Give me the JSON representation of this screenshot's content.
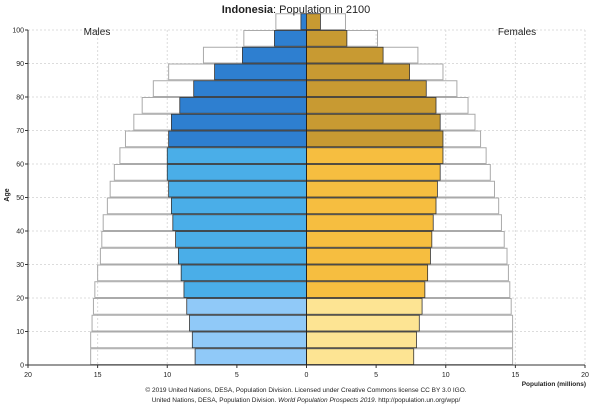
{
  "chart_data": {
    "type": "bar",
    "title_bold": "Indonesia",
    "title_rest": ": Population in 2100",
    "left_label": "Males",
    "right_label": "Females",
    "ylabel": "Age",
    "xlabel": "Population (millions)",
    "xlim": [
      -20,
      20
    ],
    "ylim": [
      0,
      100
    ],
    "x_ticks": [
      -20,
      -15,
      -10,
      -5,
      0,
      5,
      10,
      15,
      20
    ],
    "x_tick_labels": [
      "20",
      "15",
      "10",
      "5",
      "0",
      "5",
      "10",
      "15",
      "20"
    ],
    "y_ticks": [
      0,
      10,
      20,
      30,
      40,
      50,
      60,
      70,
      80,
      90,
      100
    ],
    "grid": true,
    "age_groups": [
      "0-4",
      "5-9",
      "10-14",
      "15-19",
      "20-24",
      "25-29",
      "30-34",
      "35-39",
      "40-44",
      "45-49",
      "50-54",
      "55-59",
      "60-64",
      "65-69",
      "70-74",
      "75-79",
      "80-84",
      "85-89",
      "90-94",
      "95-99",
      "100+"
    ],
    "males": [
      8.0,
      8.2,
      8.4,
      8.6,
      8.8,
      9.0,
      9.2,
      9.4,
      9.6,
      9.7,
      9.9,
      10.0,
      10.0,
      9.9,
      9.7,
      9.1,
      8.1,
      6.6,
      4.6,
      2.3,
      0.4
    ],
    "females": [
      7.7,
      7.9,
      8.1,
      8.3,
      8.5,
      8.7,
      8.9,
      9.0,
      9.1,
      9.3,
      9.4,
      9.6,
      9.8,
      9.8,
      9.6,
      9.3,
      8.6,
      7.4,
      5.5,
      2.9,
      1.0
    ],
    "reference_males": [
      15.5,
      15.5,
      15.4,
      15.3,
      15.2,
      15.0,
      14.8,
      14.7,
      14.6,
      14.3,
      14.1,
      13.8,
      13.4,
      13.0,
      12.4,
      11.8,
      11.0,
      9.9,
      7.4,
      4.5,
      2.2
    ],
    "reference_females": [
      14.8,
      14.8,
      14.8,
      14.7,
      14.6,
      14.5,
      14.4,
      14.2,
      14.0,
      13.8,
      13.5,
      13.2,
      12.9,
      12.5,
      12.1,
      11.6,
      10.8,
      9.8,
      8.0,
      5.1,
      2.8
    ],
    "colors": {
      "male_young": "#90c9f8",
      "male_working": "#4aaee8",
      "male_old": "#2e7fd0",
      "female_young": "#fde493",
      "female_working": "#f6be40",
      "female_old": "#c89a32",
      "reference_outline": "#aaaaaa",
      "grid": "#dcdcdc"
    },
    "credit_line1": "© 2019 United Nations, DESA, Population Division. Licensed under Creative Commons license CC BY 3.0 IGO.",
    "credit_line2_prefix": "United Nations, DESA, Population Division. ",
    "credit_line2_italic": "World Population Prospects 2019",
    "credit_line2_suffix": ". http://population.un.org/wpp/"
  }
}
